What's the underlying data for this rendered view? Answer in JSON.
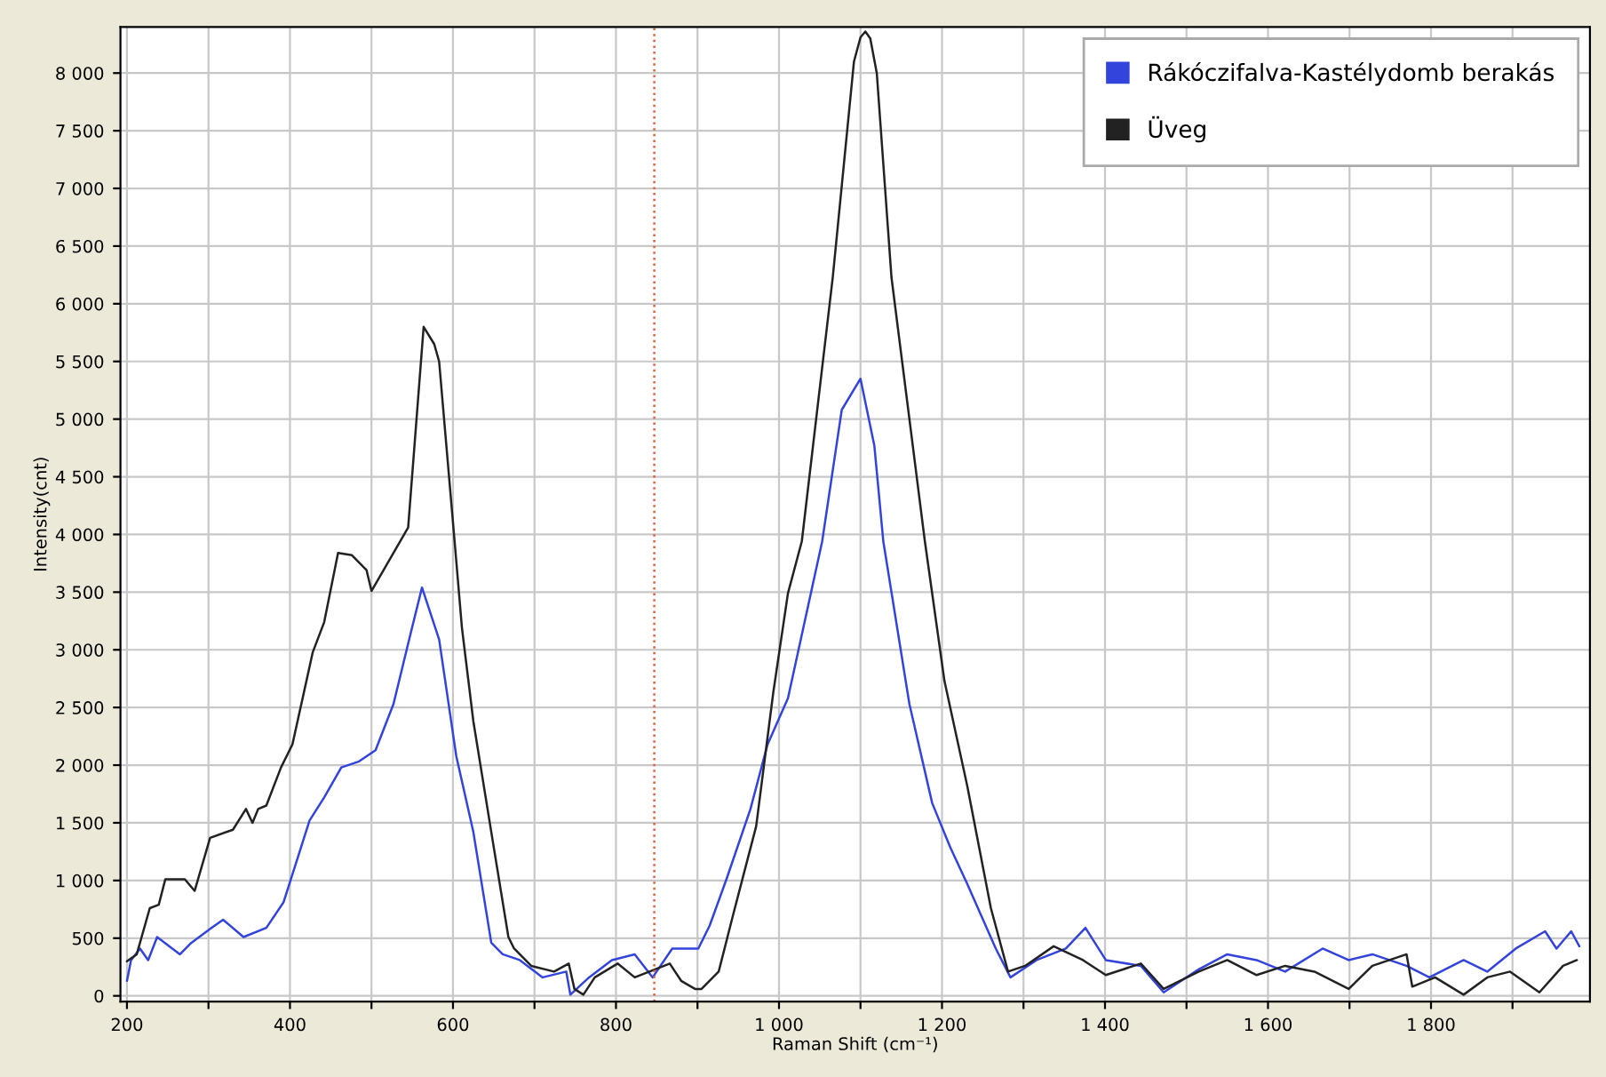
{
  "chart_data": {
    "type": "line",
    "xlabel": "Raman Shift (cm⁻¹)",
    "ylabel": "Intensity(cnt)",
    "xlim": [
      192,
      1995
    ],
    "ylim": [
      -50,
      8400
    ],
    "xticks": [
      {
        "value": 200,
        "label": "200"
      },
      {
        "value": 300,
        "label": null
      },
      {
        "value": 400,
        "label": "400"
      },
      {
        "value": 500,
        "label": null
      },
      {
        "value": 600,
        "label": "600"
      },
      {
        "value": 700,
        "label": null
      },
      {
        "value": 800,
        "label": "800"
      },
      {
        "value": 900,
        "label": null
      },
      {
        "value": 1000,
        "label": "1 000"
      },
      {
        "value": 1100,
        "label": null
      },
      {
        "value": 1200,
        "label": "1 200"
      },
      {
        "value": 1300,
        "label": null
      },
      {
        "value": 1400,
        "label": "1 400"
      },
      {
        "value": 1500,
        "label": null
      },
      {
        "value": 1600,
        "label": "1 600"
      },
      {
        "value": 1700,
        "label": null
      },
      {
        "value": 1800,
        "label": "1 800"
      },
      {
        "value": 1900,
        "label": null
      }
    ],
    "yticks": [
      0,
      500,
      {
        "value": 1000,
        "label": "1 000"
      },
      {
        "value": 1500,
        "label": "1 500"
      },
      {
        "value": 2000,
        "label": "2 000"
      },
      {
        "value": 2500,
        "label": "2 500"
      },
      {
        "value": 3000,
        "label": "3 000"
      },
      {
        "value": 3500,
        "label": "3 500"
      },
      {
        "value": 4000,
        "label": "4 000"
      },
      {
        "value": 4500,
        "label": "4 500"
      },
      {
        "value": 5000,
        "label": "5 000"
      },
      {
        "value": 5500,
        "label": "5 500"
      },
      {
        "value": 6000,
        "label": "6 000"
      },
      {
        "value": 6500,
        "label": "6 500"
      },
      {
        "value": 7000,
        "label": "7 000"
      },
      {
        "value": 7500,
        "label": "7 500"
      },
      {
        "value": 8000,
        "label": "8 000"
      }
    ],
    "grid": true,
    "legend": "top right",
    "marker": "none",
    "line_style": "solid",
    "ref_lines": [
      {
        "axis": "x",
        "value": 847,
        "color": "#e06040",
        "line_style": "dotted"
      }
    ],
    "series": [
      {
        "name": "Rákóczifalva-Kastélydomb berakás",
        "color": "#3344dd",
        "x": [
          200,
          205,
          216,
          226,
          237,
          265,
          279,
          304,
          318,
          343,
          371,
          392,
          406,
          424,
          442,
          463,
          484,
          505,
          527,
          548,
          562,
          583,
          604,
          625,
          647,
          661,
          682,
          710,
          739,
          744,
          767,
          795,
          823,
          845,
          869,
          901,
          915,
          936,
          965,
          986,
          1011,
          1053,
          1077,
          1100,
          1117,
          1128,
          1160,
          1188,
          1210,
          1231,
          1266,
          1284,
          1316,
          1352,
          1376,
          1401,
          1444,
          1472,
          1515,
          1550,
          1586,
          1621,
          1667,
          1699,
          1728,
          1770,
          1798,
          1840,
          1869,
          1904,
          1940,
          1954,
          1972,
          1982
        ],
        "values": [
          130,
          310,
          410,
          310,
          510,
          360,
          460,
          590,
          660,
          510,
          590,
          810,
          1120,
          1520,
          1720,
          1980,
          2030,
          2130,
          2530,
          3140,
          3540,
          3090,
          2080,
          1420,
          460,
          360,
          310,
          160,
          210,
          10,
          160,
          310,
          360,
          160,
          410,
          410,
          610,
          1020,
          1620,
          2180,
          2580,
          3940,
          5080,
          5350,
          4770,
          3940,
          2530,
          1670,
          1290,
          970,
          410,
          160,
          310,
          410,
          590,
          310,
          260,
          30,
          230,
          360,
          310,
          210,
          410,
          310,
          360,
          260,
          160,
          310,
          210,
          410,
          560,
          410,
          560,
          430
        ]
      },
      {
        "name": "Üveg",
        "color": "#222222",
        "x": [
          200,
          212,
          228,
          239,
          247,
          271,
          283,
          302,
          330,
          346,
          354,
          361,
          371,
          389,
          403,
          428,
          442,
          459,
          476,
          494,
          500,
          545,
          564,
          577,
          583,
          602,
          611,
          625,
          647,
          668,
          675,
          696,
          724,
          742,
          749,
          760,
          774,
          802,
          823,
          841,
          866,
          880,
          897,
          905,
          926,
          944,
          972,
          993,
          1011,
          1028,
          1066,
          1092,
          1100,
          1106,
          1112,
          1120,
          1138,
          1179,
          1203,
          1231,
          1260,
          1281,
          1302,
          1337,
          1373,
          1401,
          1444,
          1472,
          1515,
          1550,
          1586,
          1621,
          1657,
          1699,
          1728,
          1770,
          1777,
          1805,
          1840,
          1869,
          1897,
          1933,
          1962,
          1979
        ],
        "values": [
          300,
          360,
          760,
          790,
          1010,
          1010,
          910,
          1370,
          1440,
          1620,
          1500,
          1620,
          1650,
          1980,
          2180,
          2980,
          3240,
          3840,
          3820,
          3690,
          3510,
          4060,
          5800,
          5650,
          5500,
          3940,
          3190,
          2380,
          1420,
          510,
          410,
          260,
          210,
          280,
          60,
          10,
          160,
          280,
          160,
          210,
          280,
          130,
          60,
          60,
          210,
          710,
          1470,
          2630,
          3490,
          3940,
          6230,
          8100,
          8310,
          8360,
          8300,
          8000,
          6230,
          3940,
          2730,
          1820,
          760,
          210,
          260,
          430,
          310,
          180,
          280,
          60,
          210,
          310,
          180,
          260,
          210,
          60,
          260,
          360,
          80,
          160,
          10,
          160,
          210,
          30,
          260,
          310
        ]
      }
    ]
  }
}
